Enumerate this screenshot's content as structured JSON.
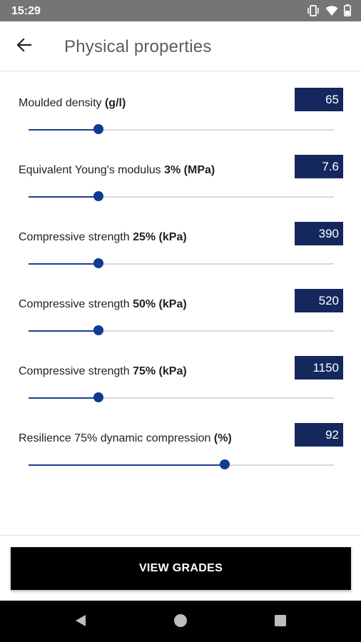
{
  "status_bar": {
    "time": "15:29"
  },
  "header": {
    "title": "Physical properties"
  },
  "properties": [
    {
      "label": "Moulded density",
      "unit": "(g/l)",
      "value": "65",
      "level": 0.23
    },
    {
      "label": "Equivalent Young's modulus",
      "unit": "3% (MPa)",
      "value": "7.6",
      "level": 0.23
    },
    {
      "label": "Compressive strength",
      "unit": "25% (kPa)",
      "value": "390",
      "level": 0.23
    },
    {
      "label": "Compressive strength",
      "unit": "50% (kPa)",
      "value": "520",
      "level": 0.23
    },
    {
      "label": "Compressive strength",
      "unit": "75% (kPa)",
      "value": "1150",
      "level": 0.23
    },
    {
      "label": "Resilience 75% dynamic compression",
      "unit": "(%)",
      "value": "92",
      "level": 0.643
    }
  ],
  "footer": {
    "button_label": "VIEW GRADES"
  },
  "colors": {
    "accent": "#14285e",
    "slider_thumb": "#0f3a96",
    "button_bg": "#000000"
  },
  "icons": [
    "vibrate-icon",
    "wifi-icon",
    "battery-icon",
    "back-arrow-icon",
    "nav-back-icon",
    "nav-home-icon",
    "nav-recents-icon"
  ]
}
